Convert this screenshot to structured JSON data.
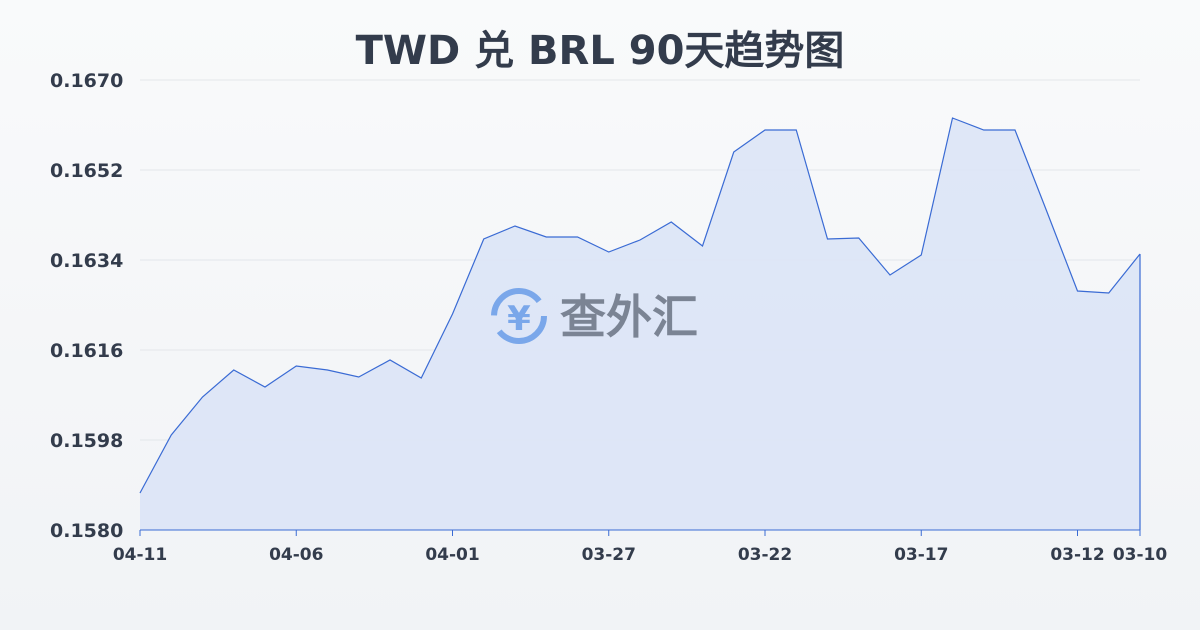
{
  "chart_data": {
    "type": "area",
    "title": "TWD 兑 BRL 90天趋势图",
    "xlabel": "",
    "ylabel": "",
    "ylim": [
      0.158,
      0.167
    ],
    "yticks": [
      "0.1670",
      "0.1652",
      "0.1634",
      "0.1616",
      "0.1598",
      "0.1580"
    ],
    "xticks": [
      "04-11",
      "04-06",
      "04-01",
      "03-27",
      "03-22",
      "03-17",
      "03-12",
      "03-10"
    ],
    "grid": true,
    "x": [
      "04-11",
      "04-10",
      "04-09",
      "04-08",
      "04-07",
      "04-06",
      "04-05",
      "04-04",
      "04-03",
      "04-02",
      "04-01",
      "03-31",
      "03-30",
      "03-29",
      "03-28",
      "03-27",
      "03-26",
      "03-25",
      "03-24",
      "03-23",
      "03-22",
      "03-21",
      "03-20",
      "03-19",
      "03-18",
      "03-17",
      "03-16",
      "03-15",
      "03-14",
      "03-13",
      "03-12",
      "03-11",
      "03-10"
    ],
    "values": [
      0.15874,
      0.1599,
      0.16066,
      0.1612,
      0.16086,
      0.16128,
      0.1612,
      0.16106,
      0.1614,
      0.16104,
      0.16232,
      0.16382,
      0.16408,
      0.16386,
      0.16386,
      0.16356,
      0.1638,
      0.16416,
      0.16368,
      0.16556,
      0.166,
      0.166,
      0.16382,
      0.16384,
      0.1631,
      0.1635,
      0.16624,
      0.166,
      0.166,
      0.1644,
      0.16278,
      0.16274,
      0.16352
    ],
    "colors": {
      "line": "#3a6bd4",
      "fill": "#dbe4f6",
      "grid": "#e3e6ea"
    }
  },
  "watermark": {
    "text": "查外汇",
    "icon": "yen-exchange-icon"
  }
}
